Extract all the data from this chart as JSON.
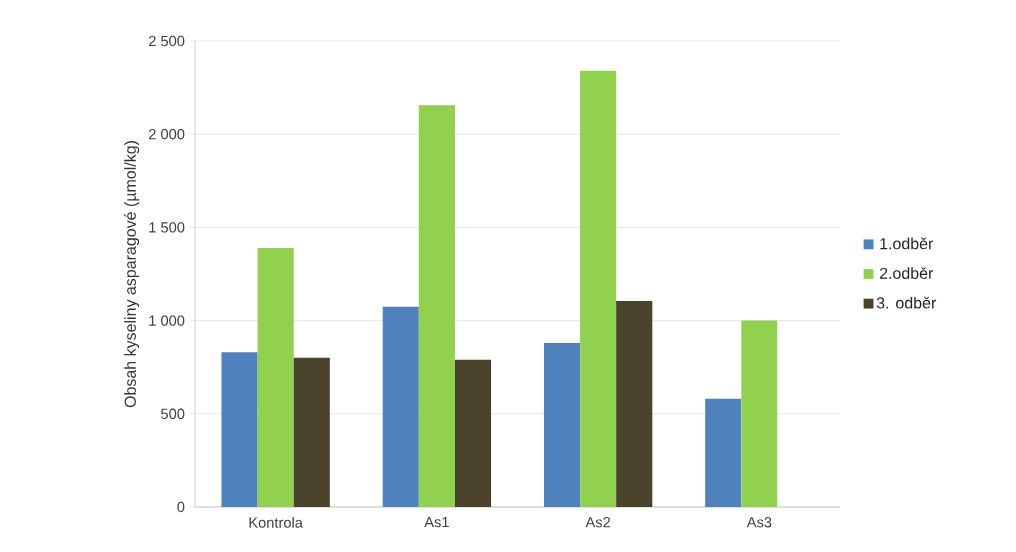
{
  "chart_data": {
    "type": "bar",
    "ylabel": "Obsah kyseliny asparagové (µmol/kg)",
    "categories": [
      "Kontrola",
      "As1",
      "As2",
      "As3"
    ],
    "series": [
      {
        "name": "1.odběr",
        "color": "#4f81bd",
        "values": [
          830,
          1075,
          880,
          580
        ]
      },
      {
        "name": "2.odběr",
        "color": "#92d050",
        "values": [
          1390,
          2155,
          2340,
          1000
        ]
      },
      {
        "name": "3. odběr",
        "color": "#4a422a",
        "values": [
          800,
          790,
          1105,
          null
        ]
      }
    ],
    "ylim": [
      0,
      2500
    ],
    "yticks": [
      0,
      500,
      {
        "value": 1000,
        "label": "1 000"
      },
      {
        "value": 1500,
        "label": "1 500"
      },
      {
        "value": 2000,
        "label": "2 000"
      },
      {
        "value": 2500,
        "label": "2 500"
      }
    ],
    "grid": "y",
    "legend": "right"
  }
}
